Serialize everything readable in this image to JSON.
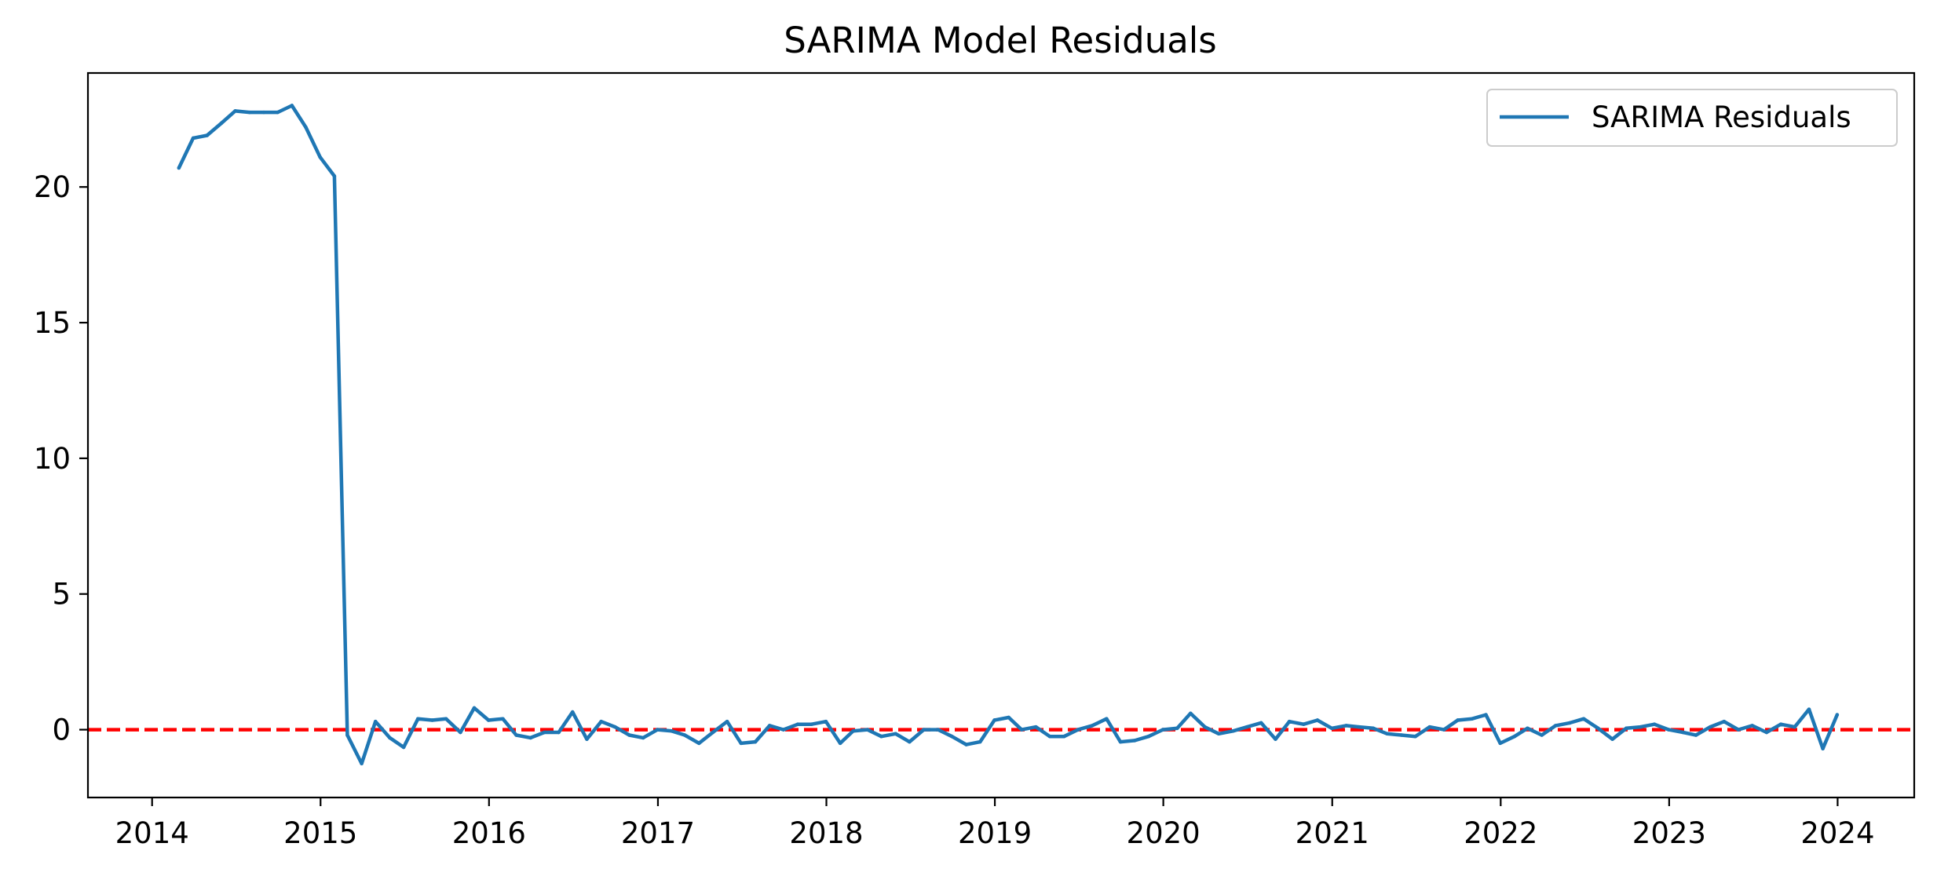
{
  "chart_data": {
    "type": "line",
    "title": "SARIMA Model Residuals",
    "xlabel": "",
    "ylabel": "",
    "x_type": "date",
    "xlim": [
      "2013-08-15",
      "2024-06-15"
    ],
    "ylim": [
      -2.5,
      24.2
    ],
    "x_ticks": [
      {
        "date": "2014-01-01",
        "label": "2014"
      },
      {
        "date": "2015-01-01",
        "label": "2015"
      },
      {
        "date": "2016-01-01",
        "label": "2016"
      },
      {
        "date": "2017-01-01",
        "label": "2017"
      },
      {
        "date": "2018-01-01",
        "label": "2018"
      },
      {
        "date": "2019-01-01",
        "label": "2019"
      },
      {
        "date": "2020-01-01",
        "label": "2020"
      },
      {
        "date": "2021-01-01",
        "label": "2021"
      },
      {
        "date": "2022-01-01",
        "label": "2022"
      },
      {
        "date": "2023-01-01",
        "label": "2023"
      },
      {
        "date": "2024-01-01",
        "label": "2024"
      }
    ],
    "y_ticks": [
      {
        "value": 0,
        "label": "0"
      },
      {
        "value": 5,
        "label": "5"
      },
      {
        "value": 10,
        "label": "10"
      },
      {
        "value": 15,
        "label": "15"
      },
      {
        "value": 20,
        "label": "20"
      }
    ],
    "grid": false,
    "legend_position": "top-right",
    "series": [
      {
        "name": "SARIMA Residuals",
        "color": "#1f77b4",
        "x": [
          "2014-02-28",
          "2014-03-31",
          "2014-04-30",
          "2014-05-31",
          "2014-06-30",
          "2014-07-31",
          "2014-08-31",
          "2014-09-30",
          "2014-10-31",
          "2014-11-30",
          "2014-12-31",
          "2015-01-31",
          "2015-02-28",
          "2015-03-31",
          "2015-04-30",
          "2015-05-31",
          "2015-06-30",
          "2015-07-31",
          "2015-08-31",
          "2015-09-30",
          "2015-10-31",
          "2015-11-30",
          "2015-12-31",
          "2016-01-31",
          "2016-02-29",
          "2016-03-31",
          "2016-04-30",
          "2016-05-31",
          "2016-06-30",
          "2016-07-31",
          "2016-08-31",
          "2016-09-30",
          "2016-10-31",
          "2016-11-30",
          "2016-12-31",
          "2017-01-31",
          "2017-02-28",
          "2017-03-31",
          "2017-04-30",
          "2017-05-31",
          "2017-06-30",
          "2017-07-31",
          "2017-08-31",
          "2017-09-30",
          "2017-10-31",
          "2017-11-30",
          "2017-12-31",
          "2018-01-31",
          "2018-02-28",
          "2018-03-31",
          "2018-04-30",
          "2018-05-31",
          "2018-06-30",
          "2018-07-31",
          "2018-08-31",
          "2018-09-30",
          "2018-10-31",
          "2018-11-30",
          "2018-12-31",
          "2019-01-31",
          "2019-02-28",
          "2019-03-31",
          "2019-04-30",
          "2019-05-31",
          "2019-06-30",
          "2019-07-31",
          "2019-08-31",
          "2019-09-30",
          "2019-10-31",
          "2019-11-30",
          "2019-12-31",
          "2020-01-31",
          "2020-02-29",
          "2020-03-31",
          "2020-04-30",
          "2020-05-31",
          "2020-06-30",
          "2020-07-31",
          "2020-08-31",
          "2020-09-30",
          "2020-10-31",
          "2020-11-30",
          "2020-12-31",
          "2021-01-31",
          "2021-02-28",
          "2021-03-31",
          "2021-04-30",
          "2021-05-31",
          "2021-06-30",
          "2021-07-31",
          "2021-08-31",
          "2021-09-30",
          "2021-10-31",
          "2021-11-30",
          "2021-12-31",
          "2022-01-31",
          "2022-02-28",
          "2022-03-31",
          "2022-04-30",
          "2022-05-31",
          "2022-06-30",
          "2022-07-31",
          "2022-08-31",
          "2022-09-30",
          "2022-10-31",
          "2022-11-30",
          "2022-12-31",
          "2023-01-31",
          "2023-02-28",
          "2023-03-31",
          "2023-04-30",
          "2023-05-31",
          "2023-06-30",
          "2023-07-31",
          "2023-08-31",
          "2023-09-30",
          "2023-10-31",
          "2023-11-30",
          "2023-12-31"
        ],
        "values": [
          20.7,
          21.8,
          21.9,
          22.35,
          22.8,
          22.75,
          22.75,
          22.75,
          23.0,
          22.2,
          21.1,
          20.4,
          -0.2,
          -1.25,
          0.3,
          -0.3,
          -0.65,
          0.4,
          0.35,
          0.4,
          -0.1,
          0.8,
          0.35,
          0.4,
          -0.2,
          -0.3,
          -0.1,
          -0.1,
          0.65,
          -0.35,
          0.3,
          0.1,
          -0.2,
          -0.3,
          0.0,
          -0.05,
          -0.2,
          -0.5,
          -0.1,
          0.3,
          -0.5,
          -0.45,
          0.15,
          0.0,
          0.2,
          0.2,
          0.3,
          -0.5,
          -0.05,
          0.0,
          -0.25,
          -0.15,
          -0.45,
          0.0,
          0.0,
          -0.25,
          -0.55,
          -0.45,
          0.35,
          0.45,
          0.0,
          0.1,
          -0.25,
          -0.25,
          0.0,
          0.15,
          0.4,
          -0.45,
          -0.4,
          -0.25,
          0.0,
          0.05,
          0.6,
          0.1,
          -0.15,
          -0.05,
          0.1,
          0.25,
          -0.35,
          0.3,
          0.2,
          0.35,
          0.05,
          0.15,
          0.1,
          0.05,
          -0.15,
          -0.2,
          -0.25,
          0.1,
          0.0,
          0.35,
          0.4,
          0.55,
          -0.5,
          -0.25,
          0.05,
          -0.2,
          0.15,
          0.25,
          0.4,
          0.05,
          -0.35,
          0.05,
          0.1,
          0.2,
          0.0,
          -0.1,
          -0.2,
          0.1,
          0.3,
          0.0,
          0.15,
          -0.1,
          0.2,
          0.1,
          0.75,
          -0.7,
          0.55
        ]
      }
    ],
    "reference_line": {
      "y": 0,
      "color": "#ff0000",
      "style": "dashed"
    }
  }
}
